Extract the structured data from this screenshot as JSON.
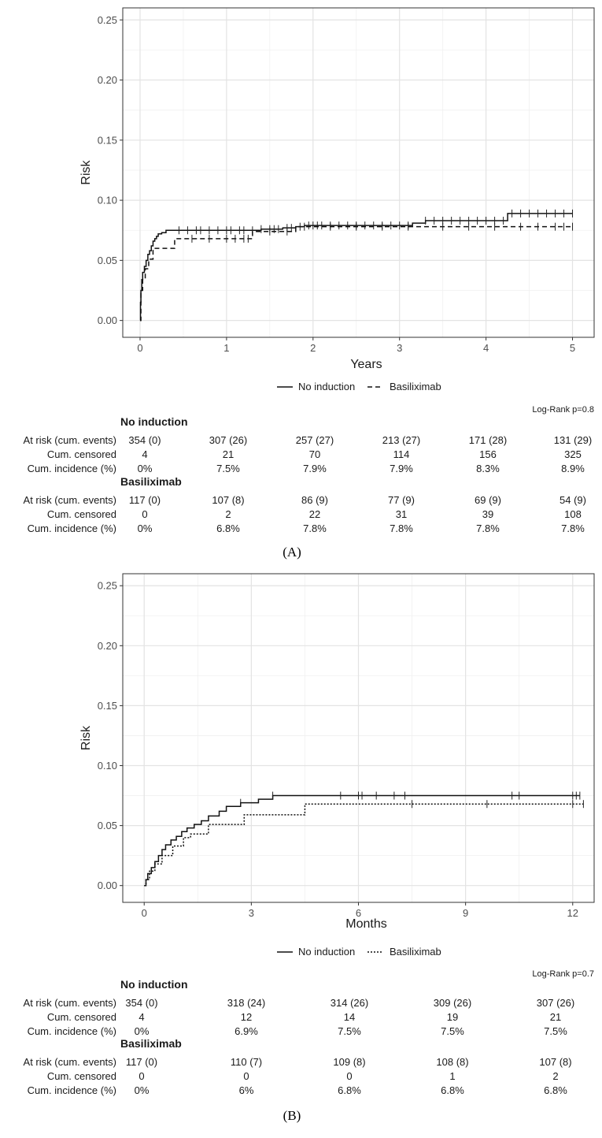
{
  "chart_data": [
    {
      "type": "line",
      "panel_label": "A",
      "xlabel": "Years",
      "ylabel": "Risk",
      "xlim": [
        -0.2,
        5.25
      ],
      "ylim": [
        -0.014,
        0.26
      ],
      "x_ticks": [
        "0",
        "1",
        "2",
        "3",
        "4",
        "5"
      ],
      "x_tick_values": [
        0,
        1,
        2,
        3,
        4,
        5
      ],
      "y_ticks": [
        "0.00",
        "0.05",
        "0.10",
        "0.15",
        "0.20",
        "0.25"
      ],
      "y_tick_values": [
        0,
        0.05,
        0.1,
        0.15,
        0.2,
        0.25
      ],
      "grid": true,
      "legend_position": "bottom",
      "log_rank": "Log-Rank p=0.8",
      "series": [
        {
          "name": "No induction",
          "line_style": "solid",
          "x": [
            0,
            0.005,
            0.01,
            0.02,
            0.03,
            0.05,
            0.07,
            0.09,
            0.11,
            0.13,
            0.15,
            0.17,
            0.19,
            0.21,
            0.25,
            0.3,
            1.4,
            1.65,
            1.8,
            1.9,
            3.15,
            3.3,
            4.25,
            5
          ],
          "y": [
            0,
            0.015,
            0.025,
            0.034,
            0.04,
            0.045,
            0.05,
            0.055,
            0.058,
            0.062,
            0.066,
            0.068,
            0.07,
            0.072,
            0.073,
            0.075,
            0.076,
            0.077,
            0.078,
            0.079,
            0.081,
            0.083,
            0.089,
            0.089
          ],
          "censor_x": [
            0.45,
            0.55,
            0.65,
            0.7,
            0.8,
            0.9,
            1.0,
            1.05,
            1.15,
            1.2,
            1.3,
            1.4,
            1.5,
            1.55,
            1.6,
            1.7,
            1.75,
            1.85,
            1.95,
            2.0,
            2.05,
            2.1,
            2.2,
            2.3,
            2.4,
            2.5,
            2.6,
            2.7,
            2.8,
            2.9,
            3.0,
            3.1,
            3.3,
            3.4,
            3.5,
            3.6,
            3.7,
            3.8,
            3.9,
            4.0,
            4.1,
            4.2,
            4.3,
            4.4,
            4.5,
            4.6,
            4.7,
            4.8,
            4.9,
            5.0
          ]
        },
        {
          "name": "Basiliximab",
          "line_style": "dashed",
          "x": [
            0,
            0.01,
            0.03,
            0.06,
            0.1,
            0.15,
            0.25,
            0.4,
            1.3,
            1.8,
            2.0,
            5.0
          ],
          "y": [
            0,
            0.025,
            0.034,
            0.043,
            0.051,
            0.06,
            0.06,
            0.068,
            0.074,
            0.078,
            0.078,
            0.078
          ],
          "censor_x": [
            0.6,
            0.8,
            1.0,
            1.1,
            1.2,
            1.25,
            1.5,
            1.7,
            1.9,
            2.2,
            2.5,
            2.8,
            3.1,
            3.5,
            3.8,
            4.1,
            4.4,
            4.6,
            4.8,
            4.9,
            5.0
          ]
        }
      ],
      "risk_table": {
        "groups": [
          {
            "title": "No induction",
            "rows": [
              {
                "label": "At risk (cum. events)",
                "values": [
                  "354 (0)",
                  "307 (26)",
                  "257 (27)",
                  "213 (27)",
                  "171 (28)",
                  "131 (29)"
                ]
              },
              {
                "label": "Cum. censored",
                "values": [
                  "4",
                  "21",
                  "70",
                  "114",
                  "156",
                  "325"
                ]
              },
              {
                "label": "Cum. incidence (%)",
                "values": [
                  "0%",
                  "7.5%",
                  "7.9%",
                  "7.9%",
                  "8.3%",
                  "8.9%"
                ]
              }
            ]
          },
          {
            "title": "Basiliximab",
            "rows": [
              {
                "label": "At risk (cum. events)",
                "values": [
                  "117 (0)",
                  "107 (8)",
                  "86 (9)",
                  "77 (9)",
                  "69 (9)",
                  "54 (9)"
                ]
              },
              {
                "label": "Cum. censored",
                "values": [
                  "0",
                  "2",
                  "22",
                  "31",
                  "39",
                  "108"
                ]
              },
              {
                "label": "Cum. incidence (%)",
                "values": [
                  "0%",
                  "6.8%",
                  "7.8%",
                  "7.8%",
                  "7.8%",
                  "7.8%"
                ]
              }
            ]
          }
        ]
      },
      "caption": "(A)"
    },
    {
      "type": "line",
      "panel_label": "B",
      "xlabel": "Months",
      "ylabel": "Risk",
      "xlim": [
        -0.6,
        12.6
      ],
      "ylim": [
        -0.014,
        0.26
      ],
      "x_ticks": [
        "0",
        "3",
        "6",
        "9",
        "12"
      ],
      "x_tick_values": [
        0,
        3,
        6,
        9,
        12
      ],
      "y_ticks": [
        "0.00",
        "0.05",
        "0.10",
        "0.15",
        "0.20",
        "0.25"
      ],
      "y_tick_values": [
        0,
        0.05,
        0.1,
        0.15,
        0.2,
        0.25
      ],
      "grid": true,
      "legend_position": "bottom",
      "log_rank": "Log-Rank p=0.7",
      "series": [
        {
          "name": "No induction",
          "line_style": "solid",
          "x": [
            0,
            0.05,
            0.1,
            0.2,
            0.3,
            0.4,
            0.5,
            0.6,
            0.75,
            0.9,
            1.05,
            1.2,
            1.4,
            1.6,
            1.8,
            2.1,
            2.3,
            2.7,
            3.2,
            3.6,
            12.2
          ],
          "y": [
            0,
            0.005,
            0.01,
            0.015,
            0.02,
            0.025,
            0.03,
            0.034,
            0.038,
            0.041,
            0.045,
            0.048,
            0.051,
            0.054,
            0.058,
            0.062,
            0.066,
            0.069,
            0.072,
            0.075,
            0.075
          ],
          "censor_x": [
            2.7,
            3.6,
            5.5,
            6.0,
            6.1,
            6.5,
            7.0,
            7.3,
            10.3,
            10.5,
            12.0,
            12.1,
            12.2
          ]
        },
        {
          "name": "Basiliximab",
          "line_style": "dotted",
          "x": [
            0,
            0.05,
            0.15,
            0.3,
            0.5,
            0.8,
            1.1,
            1.3,
            1.8,
            2.0,
            2.8,
            4.5,
            12.3
          ],
          "y": [
            0,
            0.005,
            0.012,
            0.018,
            0.025,
            0.033,
            0.04,
            0.043,
            0.051,
            0.051,
            0.059,
            0.068,
            0.068
          ],
          "censor_x": [
            7.5,
            9.6,
            12.0,
            12.3
          ]
        }
      ],
      "risk_table": {
        "groups": [
          {
            "title": "No induction",
            "rows": [
              {
                "label": "At risk (cum. events)",
                "values": [
                  "354 (0)",
                  "318 (24)",
                  "314 (26)",
                  "309 (26)",
                  "307 (26)"
                ]
              },
              {
                "label": "Cum. censored",
                "values": [
                  "4",
                  "12",
                  "14",
                  "19",
                  "21"
                ]
              },
              {
                "label": "Cum. incidence (%)",
                "values": [
                  "0%",
                  "6.9%",
                  "7.5%",
                  "7.5%",
                  "7.5%"
                ]
              }
            ]
          },
          {
            "title": "Basiliximab",
            "rows": [
              {
                "label": "At risk (cum. events)",
                "values": [
                  "117 (0)",
                  "110 (7)",
                  "109 (8)",
                  "108 (8)",
                  "107 (8)"
                ]
              },
              {
                "label": "Cum. censored",
                "values": [
                  "0",
                  "0",
                  "0",
                  "1",
                  "2"
                ]
              },
              {
                "label": "Cum. incidence (%)",
                "values": [
                  "0%",
                  "6%",
                  "6.8%",
                  "6.8%",
                  "6.8%"
                ]
              }
            ]
          }
        ]
      },
      "caption": "(B)"
    }
  ]
}
